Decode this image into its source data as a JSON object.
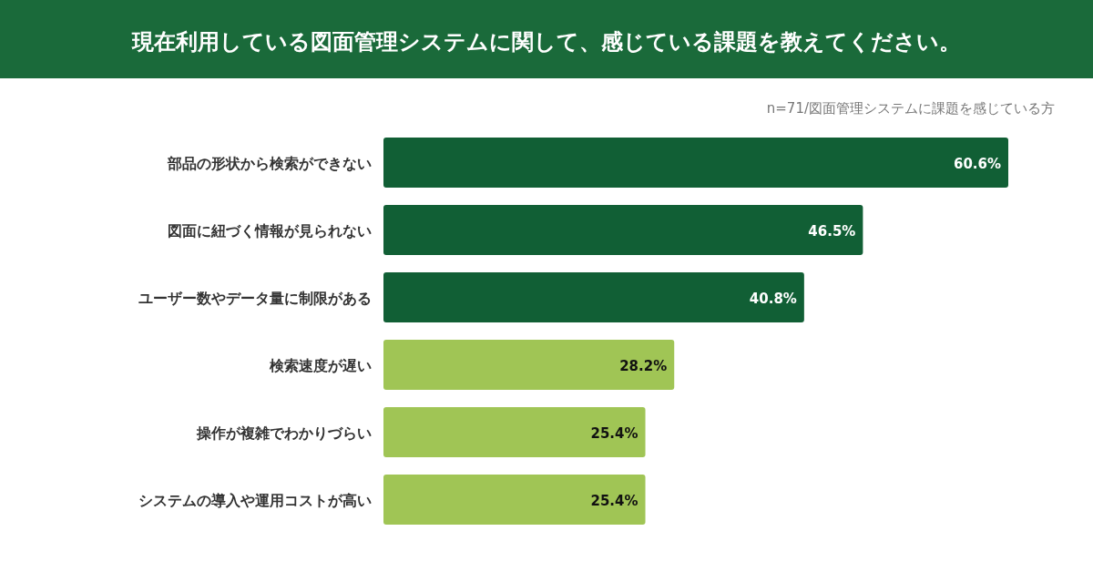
{
  "chart_data": {
    "type": "bar",
    "orientation": "horizontal",
    "title": "現在利用している図面管理システムに関して、感じている課題を教えてください。",
    "annotations": [
      "n=71/図面管理システムに課題を感じている方"
    ],
    "categories": [
      "部品の形状から検索ができない",
      "図面に紐づく情報が見られない",
      "ユーザー数やデータ量に制限がある",
      "検索速度が遅い",
      "操作が複雑でわかりづらい",
      "システムの導入や運用コストが高い"
    ],
    "values": [
      60.6,
      46.5,
      40.8,
      28.2,
      25.4,
      25.4
    ],
    "colors": [
      "#115f35",
      "#115f35",
      "#115f35",
      "#a0c555",
      "#a0c555",
      "#a0c555"
    ],
    "value_labels": [
      "60.6%",
      "46.5%",
      "40.8%",
      "28.2%",
      "25.4%",
      "25.4%"
    ]
  }
}
